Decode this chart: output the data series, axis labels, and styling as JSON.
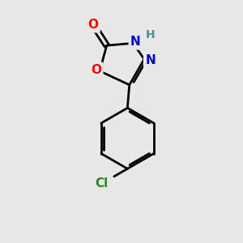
{
  "bg_color": "#e8e8e8",
  "bond_color": "#000000",
  "bond_width": 2.0,
  "atom_colors": {
    "O": "#ff0000",
    "N": "#0000cc",
    "H": "#4a9090",
    "Cl": "#228B22",
    "C": "#000000"
  },
  "font_size_atom": 11,
  "font_size_h": 10,
  "font_size_cl": 11
}
